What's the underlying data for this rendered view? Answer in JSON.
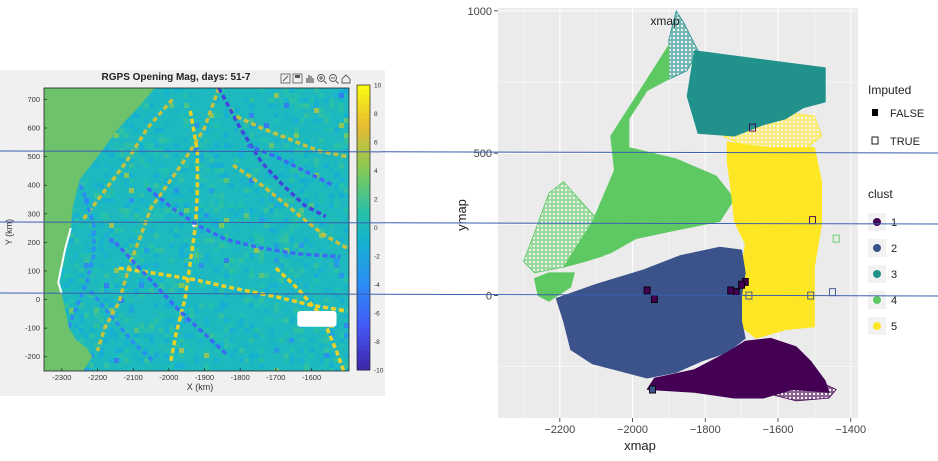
{
  "chart_data": [
    {
      "type": "heatmap",
      "title": "RGPS Opening Mag, days: 51-72",
      "title_visible": "RGPS Opening Mag, days: 51-7",
      "xlabel": "X (km)",
      "ylabel": "Y (km)",
      "x_ticks": [
        -2300,
        -2200,
        -2100,
        -2000,
        -1900,
        -1800,
        -1700,
        -1600
      ],
      "y_ticks": [
        700,
        600,
        500,
        400,
        300,
        200,
        100,
        0,
        -100,
        -200
      ],
      "xlim": [
        -2350,
        -1495
      ],
      "ylim": [
        -250,
        740
      ],
      "colorbar_ticks": [
        10,
        8,
        6,
        4,
        2,
        0,
        -2,
        -4,
        -6,
        -8,
        -10
      ],
      "colorbar_range": [
        -10,
        10
      ],
      "colormap": "parula",
      "land_color": "#6dc26b",
      "background_value": 0,
      "leads": [
        {
          "value": 6,
          "points": [
            [
              -1860,
              740
            ],
            [
              -1900,
              600
            ],
            [
              -1960,
              480
            ],
            [
              -2050,
              320
            ],
            [
              -2110,
              120
            ],
            [
              -2140,
              -10
            ],
            [
              -2180,
              -100
            ],
            [
              -2200,
              -180
            ]
          ]
        },
        {
          "value": -8,
          "points": [
            [
              -1860,
              740
            ],
            [
              -1800,
              600
            ],
            [
              -1740,
              480
            ],
            [
              -1680,
              400
            ],
            [
              -1620,
              330
            ],
            [
              -1560,
              290
            ]
          ]
        },
        {
          "value": 6,
          "points": [
            [
              -1990,
              700
            ],
            [
              -2060,
              600
            ],
            [
              -2120,
              480
            ],
            [
              -2180,
              380
            ],
            [
              -2240,
              280
            ]
          ]
        },
        {
          "value": -4,
          "points": [
            [
              -2290,
              500
            ],
            [
              -2240,
              380
            ],
            [
              -2210,
              260
            ],
            [
              -2210,
              160
            ],
            [
              -2230,
              60
            ],
            [
              -2270,
              -60
            ],
            [
              -2300,
              -180
            ]
          ]
        },
        {
          "value": 8,
          "points": [
            [
              -1940,
              660
            ],
            [
              -1920,
              520
            ],
            [
              -1920,
              380
            ],
            [
              -1925,
              260
            ],
            [
              -1940,
              130
            ],
            [
              -1955,
              0
            ],
            [
              -1980,
              -120
            ],
            [
              -1995,
              -220
            ]
          ]
        },
        {
          "value": -6,
          "points": [
            [
              -2060,
              390
            ],
            [
              -1990,
              320
            ],
            [
              -1920,
              260
            ],
            [
              -1840,
              210
            ],
            [
              -1740,
              180
            ],
            [
              -1640,
              160
            ],
            [
              -1520,
              150
            ]
          ]
        },
        {
          "value": 8,
          "points": [
            [
              -2140,
              110
            ],
            [
              -2030,
              90
            ],
            [
              -1930,
              70
            ],
            [
              -1820,
              40
            ],
            [
              -1700,
              10
            ],
            [
              -1600,
              -20
            ],
            [
              -1500,
              -40
            ]
          ]
        },
        {
          "value": -6,
          "points": [
            [
              -2150,
              200
            ],
            [
              -2090,
              120
            ],
            [
              -2030,
              40
            ],
            [
              -1970,
              -40
            ],
            [
              -1900,
              -120
            ],
            [
              -1840,
              -190
            ]
          ]
        },
        {
          "value": 6,
          "points": [
            [
              -1820,
              470
            ],
            [
              -1760,
              420
            ],
            [
              -1700,
              360
            ],
            [
              -1640,
              300
            ],
            [
              -1570,
              230
            ],
            [
              -1500,
              180
            ]
          ]
        },
        {
          "value": 8,
          "points": [
            [
              -1700,
              110
            ],
            [
              -1640,
              40
            ],
            [
              -1570,
              -60
            ],
            [
              -1530,
              -180
            ],
            [
              -1510,
              -250
            ]
          ]
        },
        {
          "value": -4,
          "points": [
            [
              -2220,
              30
            ],
            [
              -2160,
              -60
            ],
            [
              -2100,
              -150
            ],
            [
              -2040,
              -220
            ]
          ]
        },
        {
          "value": 6,
          "points": [
            [
              -1810,
              640
            ],
            [
              -1740,
              600
            ],
            [
              -1660,
              560
            ],
            [
              -1580,
              520
            ],
            [
              -1500,
              500
            ]
          ]
        },
        {
          "value": -6,
          "points": [
            [
              -1780,
              540
            ],
            [
              -1700,
              500
            ],
            [
              -1620,
              450
            ],
            [
              -1540,
              400
            ]
          ]
        }
      ],
      "features": [
        {
          "value": 0,
          "shape": "hole",
          "x": [
            -1640,
            -1530
          ],
          "y": [
            -95,
            -40
          ]
        },
        {
          "value": 0,
          "shape": "hole",
          "x": [
            -1935,
            -1925
          ],
          "y": [
            255,
            262
          ]
        }
      ]
    },
    {
      "type": "scatter",
      "xlabel": "xmap",
      "ylabel": "ymap",
      "x_ticks": [
        -2200,
        -2000,
        -1800,
        -1600,
        -1400
      ],
      "y_ticks": [
        0,
        500,
        1000
      ],
      "xlim": [
        -2370,
        -1380
      ],
      "ylim": [
        -430,
        1010
      ],
      "grid": true,
      "legends": [
        {
          "title": "Imputed",
          "position": "right",
          "entries": [
            {
              "label": "FALSE",
              "marker": "filled-square"
            },
            {
              "label": "TRUE",
              "marker": "open-square"
            }
          ]
        },
        {
          "title": "clust",
          "position": "right",
          "entries": [
            {
              "label": "1",
              "color": "#440154"
            },
            {
              "label": "2",
              "color": "#3b528b"
            },
            {
              "label": "3",
              "color": "#21918c"
            },
            {
              "label": "4",
              "color": "#5ec962"
            },
            {
              "label": "5",
              "color": "#fde725"
            }
          ]
        }
      ],
      "regions": [
        {
          "cluster": "3",
          "imputed": false,
          "polygon": [
            [
              -1830,
              860
            ],
            [
              -1650,
              830
            ],
            [
              -1470,
              800
            ],
            [
              -1470,
              680
            ],
            [
              -1530,
              660
            ],
            [
              -1580,
              620
            ],
            [
              -1640,
              600
            ],
            [
              -1720,
              560
            ],
            [
              -1820,
              570
            ],
            [
              -1850,
              700
            ]
          ]
        },
        {
          "cluster": "3",
          "imputed": true,
          "polygon": [
            [
              -1880,
              1000
            ],
            [
              -1860,
              960
            ],
            [
              -1820,
              860
            ],
            [
              -1850,
              790
            ],
            [
              -1900,
              760
            ],
            [
              -1900,
              900
            ]
          ]
        },
        {
          "cluster": "4",
          "imputed": false,
          "polygon": [
            [
              -1900,
              880
            ],
            [
              -1900,
              760
            ],
            [
              -1960,
              720
            ],
            [
              -2010,
              620
            ],
            [
              -2010,
              520
            ],
            [
              -1880,
              480
            ],
            [
              -1770,
              420
            ],
            [
              -1720,
              340
            ],
            [
              -1760,
              260
            ],
            [
              -1880,
              230
            ],
            [
              -1990,
              200
            ],
            [
              -2060,
              150
            ],
            [
              -2130,
              120
            ],
            [
              -2190,
              100
            ],
            [
              -2110,
              260
            ],
            [
              -2050,
              440
            ],
            [
              -2060,
              560
            ],
            [
              -1960,
              760
            ]
          ]
        },
        {
          "cluster": "4",
          "imputed": true,
          "polygon": [
            [
              -2270,
              80
            ],
            [
              -2190,
              100
            ],
            [
              -2130,
              120
            ],
            [
              -2080,
              140
            ],
            [
              -2060,
              220
            ],
            [
              -2120,
              300
            ],
            [
              -2190,
              400
            ],
            [
              -2230,
              360
            ],
            [
              -2270,
              220
            ],
            [
              -2300,
              120
            ]
          ]
        },
        {
          "cluster": "4",
          "imputed": false,
          "polygon": [
            [
              -2230,
              -20
            ],
            [
              -2170,
              30
            ],
            [
              -2160,
              80
            ],
            [
              -2230,
              80
            ],
            [
              -2270,
              60
            ],
            [
              -2260,
              0
            ]
          ]
        },
        {
          "cluster": "5",
          "imputed": false,
          "polygon": [
            [
              -1740,
              540
            ],
            [
              -1640,
              520
            ],
            [
              -1500,
              520
            ],
            [
              -1480,
              400
            ],
            [
              -1480,
              250
            ],
            [
              -1500,
              100
            ],
            [
              -1500,
              -20
            ],
            [
              -1500,
              -110
            ],
            [
              -1580,
              -120
            ],
            [
              -1660,
              -150
            ],
            [
              -1700,
              -110
            ],
            [
              -1700,
              -20
            ],
            [
              -1700,
              100
            ],
            [
              -1690,
              180
            ],
            [
              -1720,
              260
            ],
            [
              -1730,
              380
            ],
            [
              -1740,
              470
            ]
          ]
        },
        {
          "cluster": "5",
          "imputed": true,
          "polygon": [
            [
              -1720,
              670
            ],
            [
              -1640,
              650
            ],
            [
              -1560,
              640
            ],
            [
              -1500,
              630
            ],
            [
              -1480,
              560
            ],
            [
              -1520,
              520
            ],
            [
              -1620,
              520
            ],
            [
              -1700,
              530
            ],
            [
              -1750,
              560
            ]
          ]
        },
        {
          "cluster": "2",
          "imputed": false,
          "polygon": [
            [
              -2210,
              -10
            ],
            [
              -2100,
              40
            ],
            [
              -1970,
              90
            ],
            [
              -1870,
              140
            ],
            [
              -1760,
              170
            ],
            [
              -1700,
              160
            ],
            [
              -1690,
              80
            ],
            [
              -1700,
              0
            ],
            [
              -1700,
              -90
            ],
            [
              -1690,
              -150
            ],
            [
              -1740,
              -200
            ],
            [
              -1810,
              -230
            ],
            [
              -1880,
              -270
            ],
            [
              -1960,
              -290
            ],
            [
              -2020,
              -270
            ],
            [
              -2110,
              -240
            ],
            [
              -2170,
              -190
            ],
            [
              -2190,
              -90
            ]
          ]
        },
        {
          "cluster": "1",
          "imputed": false,
          "polygon": [
            [
              -1830,
              -260
            ],
            [
              -1740,
              -200
            ],
            [
              -1690,
              -160
            ],
            [
              -1620,
              -150
            ],
            [
              -1550,
              -180
            ],
            [
              -1510,
              -230
            ],
            [
              -1470,
              -300
            ],
            [
              -1460,
              -340
            ],
            [
              -1560,
              -330
            ],
            [
              -1640,
              -360
            ],
            [
              -1720,
              -360
            ],
            [
              -1830,
              -340
            ],
            [
              -1960,
              -330
            ],
            [
              -1940,
              -290
            ]
          ]
        },
        {
          "cluster": "1",
          "imputed": true,
          "polygon": [
            [
              -1580,
              -310
            ],
            [
              -1490,
              -300
            ],
            [
              -1440,
              -330
            ],
            [
              -1460,
              -360
            ],
            [
              -1550,
              -370
            ],
            [
              -1610,
              -350
            ]
          ]
        }
      ],
      "points": [
        {
          "x": -1690,
          "y": 48,
          "cluster": "1",
          "imputed": false
        },
        {
          "x": -1700,
          "y": 38,
          "cluster": "1",
          "imputed": false
        },
        {
          "x": -1960,
          "y": 18,
          "cluster": "1",
          "imputed": false
        },
        {
          "x": -1940,
          "y": -12,
          "cluster": "1",
          "imputed": false
        },
        {
          "x": -1715,
          "y": 12,
          "cluster": "1",
          "imputed": false
        },
        {
          "x": -1730,
          "y": 18,
          "cluster": "1",
          "imputed": false
        },
        {
          "x": -1505,
          "y": 265,
          "cluster": "1",
          "imputed": true
        },
        {
          "x": -1670,
          "y": 590,
          "cluster": "1",
          "imputed": true
        },
        {
          "x": -1510,
          "y": 0,
          "cluster": "2",
          "imputed": true
        },
        {
          "x": -1680,
          "y": 0,
          "cluster": "2",
          "imputed": true
        },
        {
          "x": -1450,
          "y": 12,
          "cluster": "2",
          "imputed": true
        },
        {
          "x": -1440,
          "y": 200,
          "cluster": "4",
          "imputed": true
        },
        {
          "x": -1945,
          "y": -330,
          "cluster": "2",
          "imputed": false
        }
      ]
    }
  ]
}
